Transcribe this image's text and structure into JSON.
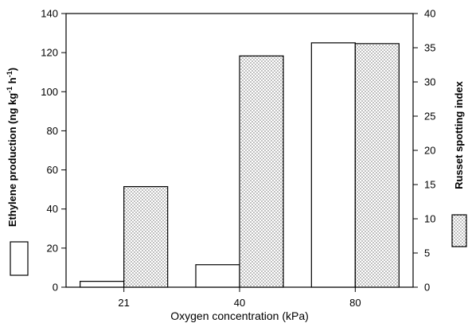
{
  "chart_data": {
    "type": "bar",
    "categories": [
      "21",
      "40",
      "80"
    ],
    "xlabel": "Oxygen concentration (kPa)",
    "ylabel_left": "Ethylene production (ng kg",
    "ylabel_left_sup1": "-1",
    "ylabel_left_mid": " h",
    "ylabel_left_sup2": "-1",
    "ylabel_left_end": ")",
    "ylabel_right": "Russet spotting index",
    "ylim_left": [
      0,
      140
    ],
    "ylim_right": [
      0,
      40
    ],
    "yticks_left": [
      0,
      20,
      40,
      60,
      80,
      100,
      120,
      140
    ],
    "yticks_right": [
      0,
      5,
      10,
      15,
      20,
      25,
      30,
      35,
      40
    ],
    "grid": false,
    "legend_placement": "vertical-sides",
    "series": [
      {
        "axis": "left",
        "style": "open",
        "values": [
          3,
          11.5,
          125
        ]
      },
      {
        "axis": "right",
        "style": "dotted",
        "values": [
          14.7,
          33.8,
          35.6
        ]
      }
    ]
  }
}
